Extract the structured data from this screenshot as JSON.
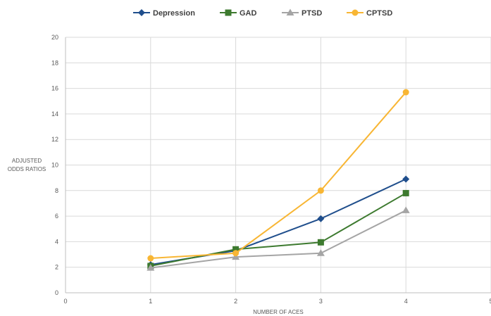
{
  "chart_data": {
    "type": "line",
    "title": "",
    "xlabel": "NUMBER OF ACES",
    "ylabel": "ADJUSTED ODDS RATIOS",
    "ylabel_lines": [
      "ADJUSTED",
      "ODDS RATIOS"
    ],
    "xlim": [
      0,
      5
    ],
    "ylim": [
      0,
      20
    ],
    "x_ticks": [
      0,
      1,
      2,
      3,
      4,
      5
    ],
    "y_ticks": [
      0,
      2,
      4,
      6,
      8,
      10,
      12,
      14,
      16,
      18,
      20
    ],
    "grid": true,
    "legend_position": "top",
    "x": [
      1,
      2,
      3,
      4
    ],
    "series": [
      {
        "name": "Depression",
        "color": "#1f4e8c",
        "marker": "diamond",
        "values": [
          2.2,
          3.3,
          5.8,
          8.9
        ]
      },
      {
        "name": "GAD",
        "color": "#3d7a2f",
        "marker": "square",
        "values": [
          2.1,
          3.4,
          3.95,
          7.8
        ]
      },
      {
        "name": "PTSD",
        "color": "#a5a5a5",
        "marker": "triangle",
        "values": [
          1.95,
          2.8,
          3.1,
          6.45
        ]
      },
      {
        "name": "CPTSD",
        "color": "#f8b634",
        "marker": "circle",
        "values": [
          2.7,
          3.1,
          8.0,
          15.7
        ]
      }
    ]
  }
}
